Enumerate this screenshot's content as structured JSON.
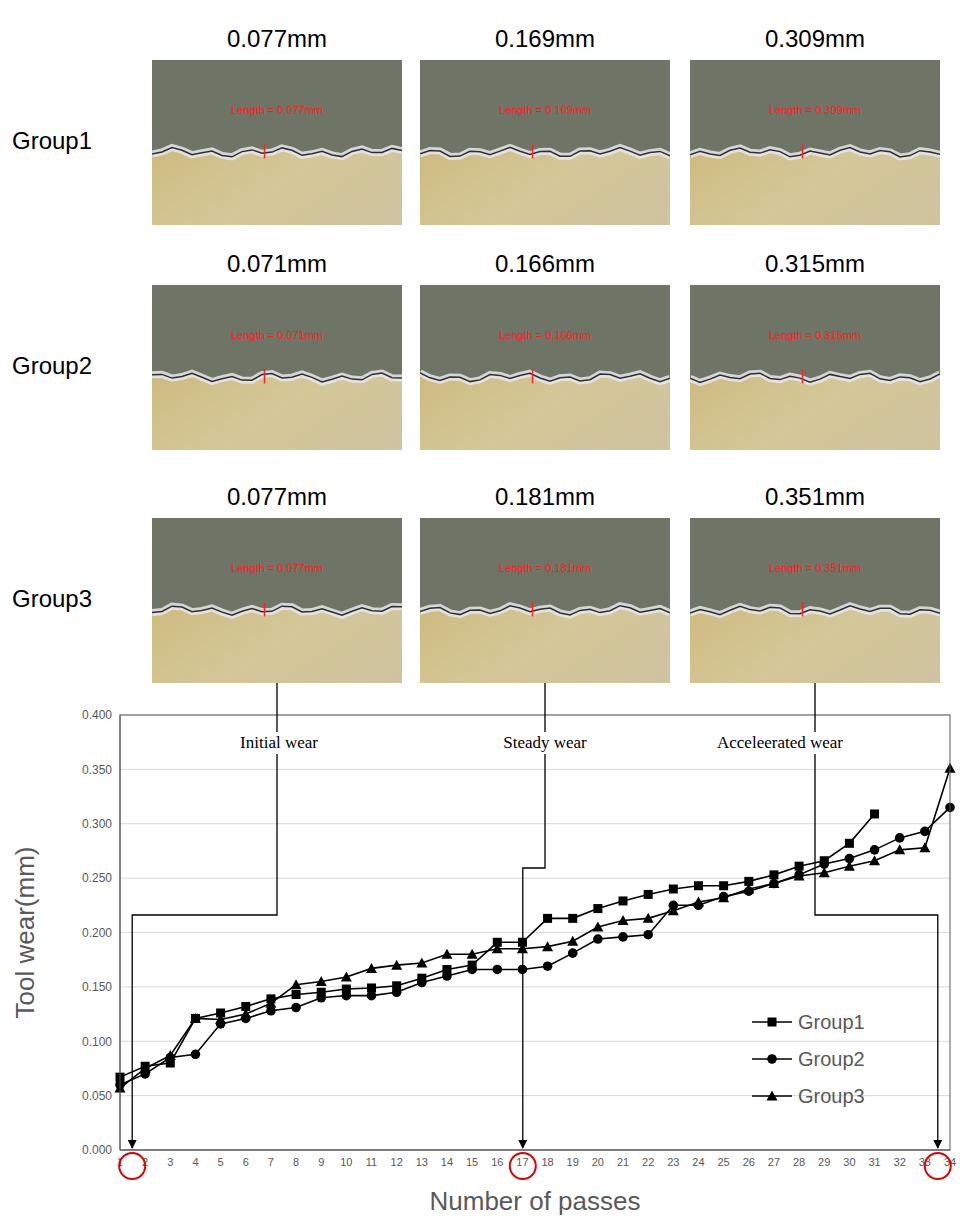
{
  "chart_data": {
    "type": "line",
    "x_label": "Number of passes",
    "y_label": "Tool wear(mm)",
    "categories": [
      "1",
      "2",
      "3",
      "4",
      "5",
      "6",
      "7",
      "8",
      "9",
      "10",
      "11",
      "12",
      "13",
      "14",
      "15",
      "16",
      "17",
      "18",
      "19",
      "20",
      "21",
      "22",
      "23",
      "24",
      "25",
      "26",
      "27",
      "28",
      "29",
      "30",
      "31",
      "32",
      "33",
      "34"
    ],
    "series": [
      {
        "name": "Group1",
        "color": "#000000",
        "marker": "square",
        "line_style": "solid",
        "values": [
          0.067,
          0.077,
          0.08,
          0.121,
          0.126,
          0.132,
          0.139,
          0.143,
          0.145,
          0.148,
          0.149,
          0.151,
          0.158,
          0.166,
          0.17,
          0.191,
          0.191,
          0.213,
          0.213,
          0.222,
          0.229,
          0.235,
          0.24,
          0.243,
          0.243,
          0.247,
          0.253,
          0.261,
          0.266,
          0.282,
          0.309,
          null,
          null,
          null
        ]
      },
      {
        "name": "Group2",
        "color": "#000000",
        "marker": "circle",
        "line_style": "solid",
        "values": [
          0.06,
          0.07,
          0.085,
          0.088,
          0.116,
          0.121,
          0.128,
          0.131,
          0.14,
          0.142,
          0.142,
          0.145,
          0.154,
          0.16,
          0.166,
          0.166,
          0.166,
          0.169,
          0.181,
          0.194,
          0.196,
          0.198,
          0.225,
          0.225,
          0.233,
          0.238,
          0.245,
          0.253,
          0.263,
          0.268,
          0.276,
          0.287,
          0.293,
          0.315
        ]
      },
      {
        "name": "Group3",
        "color": "#000000",
        "marker": "triangle",
        "line_style": "solid",
        "values": [
          0.057,
          0.075,
          0.087,
          0.121,
          0.12,
          0.125,
          0.135,
          0.152,
          0.155,
          0.159,
          0.167,
          0.17,
          0.172,
          0.18,
          0.18,
          0.185,
          0.185,
          0.187,
          0.192,
          0.205,
          0.211,
          0.213,
          0.22,
          0.228,
          0.232,
          0.24,
          0.245,
          0.252,
          0.255,
          0.261,
          0.266,
          0.276,
          0.278,
          0.351
        ]
      }
    ],
    "ylim": [
      0,
      0.4
    ],
    "yticks": [
      {
        "value": 0,
        "label": "0.000"
      },
      {
        "value": 0.05,
        "label": "0.050"
      },
      {
        "value": 0.1,
        "label": "0.100"
      },
      {
        "value": 0.15,
        "label": "0.150"
      },
      {
        "value": 0.2,
        "label": "0.200"
      },
      {
        "value": 0.25,
        "label": "0.250"
      },
      {
        "value": 0.3,
        "label": "0.300"
      },
      {
        "value": 0.35,
        "label": "0.350"
      },
      {
        "value": 0.4,
        "label": "0.400"
      }
    ],
    "grid": true,
    "legend": "lower right",
    "annotations": [
      {
        "text": "Initial wear",
        "category": "1"
      },
      {
        "text": "Steady wear",
        "category": "17"
      },
      {
        "text": "Acceleerated wear",
        "category": "34"
      }
    ]
  },
  "micrographs": [
    {
      "group": "Group1",
      "images": [
        {
          "title": "0.077mm",
          "label": "Length = 0.077mm"
        },
        {
          "title": "0.169mm",
          "label": "Length = 0.169mm"
        },
        {
          "title": "0.309mm",
          "label": "Length = 0.309mm"
        }
      ]
    },
    {
      "group": "Group2",
      "images": [
        {
          "title": "0.071mm",
          "label": "Length = 0.071mm"
        },
        {
          "title": "0.166mm",
          "label": "Length = 0.166mm"
        },
        {
          "title": "0.315mm",
          "label": "Length = 0.315mm"
        }
      ]
    },
    {
      "group": "Group3",
      "images": [
        {
          "title": "0.077mm",
          "label": "Length = 0.077mm"
        },
        {
          "title": "0.181mm",
          "label": "Length = 0.181mm"
        },
        {
          "title": "0.351mm",
          "label": "Length = 0.351mm"
        }
      ]
    }
  ]
}
